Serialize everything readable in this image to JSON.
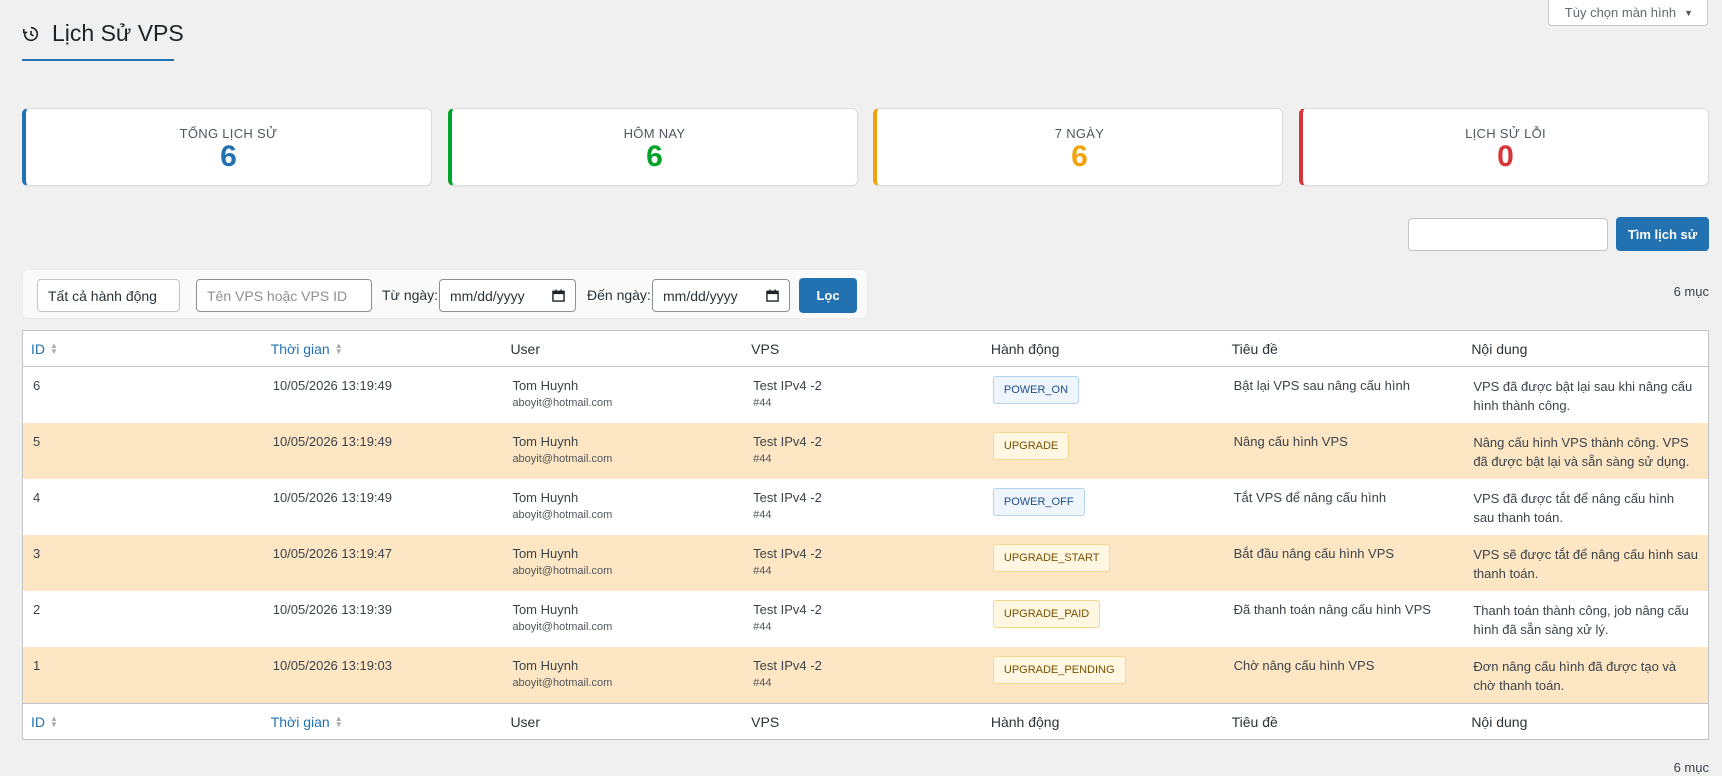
{
  "screen_options": {
    "label": "Tùy chọn màn hình"
  },
  "page": {
    "title": "Lịch Sử VPS"
  },
  "stats": [
    {
      "label": "TỔNG LỊCH SỬ",
      "value": "6",
      "color": "#2271b1"
    },
    {
      "label": "HÔM NAY",
      "value": "6",
      "color": "#00a32a"
    },
    {
      "label": "7 NGÀY",
      "value": "6",
      "color": "#f0a30a"
    },
    {
      "label": "LỊCH SỬ LỖI",
      "value": "0",
      "color": "#d63638"
    }
  ],
  "search": {
    "button_label": "Tìm lịch sử",
    "value": ""
  },
  "filters": {
    "action_select": "Tất cả hành động",
    "vps_placeholder": "Tên VPS hoặc VPS ID",
    "from_label": "Từ ngày:",
    "from_value": "mm/dd/yyyy",
    "to_label": "Đến ngày:",
    "to_value": "mm/dd/yyyy",
    "filter_button": "Lọc"
  },
  "item_count": "6 mục",
  "table": {
    "columns": [
      "ID",
      "Thời gian",
      "User",
      "VPS",
      "Hành động",
      "Tiêu đề",
      "Nội dung"
    ],
    "rows": [
      {
        "id": "6",
        "time": "10/05/2026 13:19:49",
        "user_name": "Tom Huynh",
        "user_email": "aboyit@hotmail.com",
        "vps_name": "Test IPv4 -2",
        "vps_id": "#44",
        "action": "POWER_ON",
        "title": "Bật lại VPS sau nâng cấu hình",
        "content": "VPS đã được bật lại sau khi nâng cấu hình thành công."
      },
      {
        "id": "5",
        "time": "10/05/2026 13:19:49",
        "user_name": "Tom Huynh",
        "user_email": "aboyit@hotmail.com",
        "vps_name": "Test IPv4 -2",
        "vps_id": "#44",
        "action": "UPGRADE",
        "title": "Nâng cấu hình VPS",
        "content": "Nâng cấu hình VPS thành công. VPS đã được bật lại và sẵn sàng sử dụng."
      },
      {
        "id": "4",
        "time": "10/05/2026 13:19:49",
        "user_name": "Tom Huynh",
        "user_email": "aboyit@hotmail.com",
        "vps_name": "Test IPv4 -2",
        "vps_id": "#44",
        "action": "POWER_OFF",
        "title": "Tắt VPS để nâng cấu hình",
        "content": "VPS đã được tắt để nâng cấu hình sau thanh toán."
      },
      {
        "id": "3",
        "time": "10/05/2026 13:19:47",
        "user_name": "Tom Huynh",
        "user_email": "aboyit@hotmail.com",
        "vps_name": "Test IPv4 -2",
        "vps_id": "#44",
        "action": "UPGRADE_START",
        "title": "Bắt đầu nâng cấu hình VPS",
        "content": "VPS sẽ được tắt để nâng cấu hình sau thanh toán."
      },
      {
        "id": "2",
        "time": "10/05/2026 13:19:39",
        "user_name": "Tom Huynh",
        "user_email": "aboyit@hotmail.com",
        "vps_name": "Test IPv4 -2",
        "vps_id": "#44",
        "action": "UPGRADE_PAID",
        "title": "Đã thanh toán nâng cấu hình VPS",
        "content": "Thanh toán thành công, job nâng cấu hình đã sẵn sàng xử lý."
      },
      {
        "id": "1",
        "time": "10/05/2026 13:19:03",
        "user_name": "Tom Huynh",
        "user_email": "aboyit@hotmail.com",
        "vps_name": "Test IPv4 -2",
        "vps_id": "#44",
        "action": "UPGRADE_PENDING",
        "title": "Chờ nâng cấu hình VPS",
        "content": "Đơn nâng cấu hình đã được tạo và chờ thanh toán."
      }
    ]
  }
}
